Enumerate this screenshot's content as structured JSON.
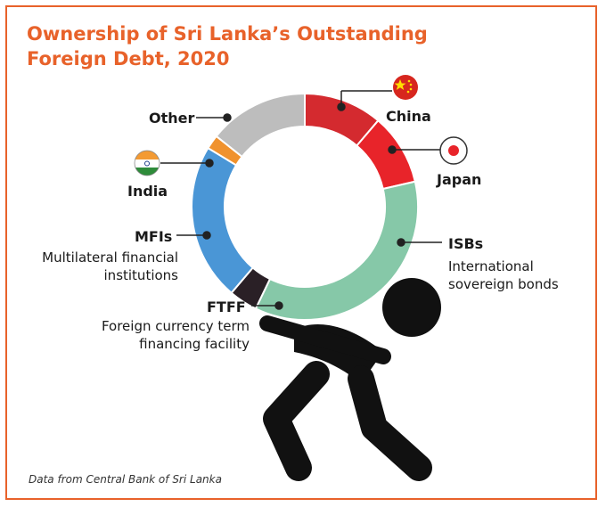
{
  "title_line1": "Ownership of Sri Lanka’s Outstanding",
  "title_line2": "Foreign Debt, 2020",
  "source": "Data from Central Bank of Sri Lanka",
  "chart_data": {
    "type": "pie",
    "subtype": "donut",
    "slices": [
      {
        "name": "China",
        "value": 11,
        "color": "#d42a2f",
        "icon": "china-flag-icon"
      },
      {
        "name": "Japan",
        "value": 10,
        "color": "#e8242a",
        "icon": "japan-flag-icon"
      },
      {
        "name": "ISBs",
        "description": "International sovereign bonds",
        "value": 35,
        "color": "#86c8a8"
      },
      {
        "name": "FTFF",
        "description": "Foreign currency term financing facility",
        "value": 4,
        "color": "#2a2026"
      },
      {
        "name": "MFIs",
        "description": "Multilateral financial institutions",
        "value": 22,
        "color": "#4a96d6"
      },
      {
        "name": "India",
        "value": 2,
        "color": "#f0922e",
        "icon": "india-flag-icon"
      },
      {
        "name": "Other",
        "value": 14,
        "color": "#bdbdbd"
      }
    ],
    "legend": "none",
    "grid": false
  }
}
